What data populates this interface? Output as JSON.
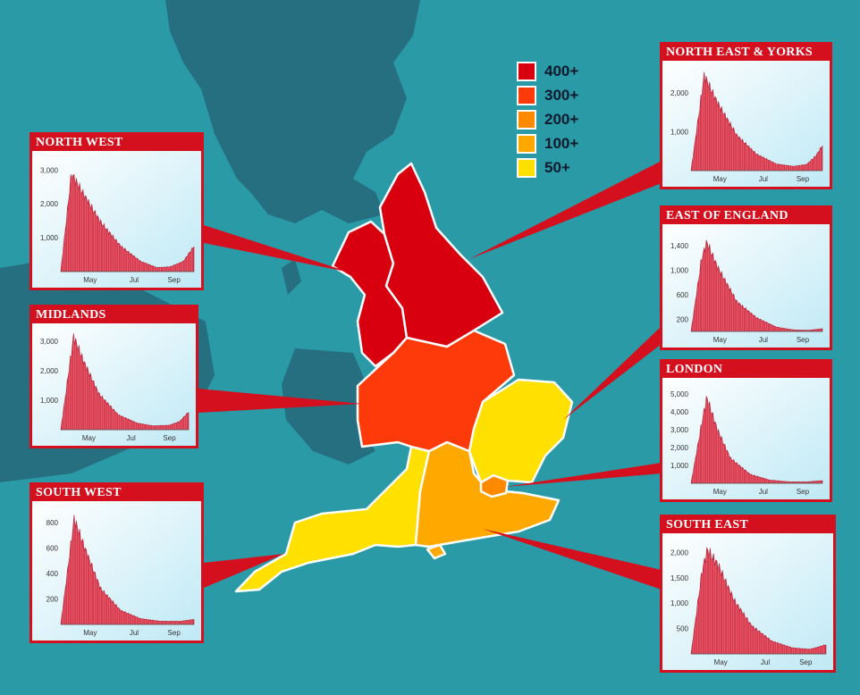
{
  "colors": {
    "sea": "#2a9aa6",
    "land_grey": "#256f80",
    "red_400": "#d8000f",
    "red_300": "#ff3a0a",
    "orange_200": "#ff8a00",
    "orange_100": "#ffa800",
    "yellow_50": "#ffe000",
    "panel_red": "#d4101e"
  },
  "legend": [
    {
      "label": "400+",
      "color": "#d8000f"
    },
    {
      "label": "300+",
      "color": "#ff3a0a"
    },
    {
      "label": "200+",
      "color": "#ff8a00"
    },
    {
      "label": "100+",
      "color": "#ffa800"
    },
    {
      "label": "50+",
      "color": "#ffe000"
    }
  ],
  "regions": [
    {
      "name": "North West",
      "band": "400+"
    },
    {
      "name": "North East & Yorks",
      "band": "400+"
    },
    {
      "name": "Midlands",
      "band": "300+"
    },
    {
      "name": "East of England",
      "band": "50+"
    },
    {
      "name": "London",
      "band": "200+"
    },
    {
      "name": "South East",
      "band": "100+"
    },
    {
      "name": "South West",
      "band": "50+"
    }
  ],
  "chart_data": [
    {
      "type": "area",
      "title": "NORTH WEST",
      "x": [
        "May",
        "Jul",
        "Sep"
      ],
      "yticks": [
        "1,000",
        "2,000",
        "3,000"
      ],
      "ylim": [
        0,
        3300
      ],
      "profile": [
        [
          0,
          0
        ],
        [
          0.08,
          2900
        ],
        [
          0.16,
          2350
        ],
        [
          0.3,
          1450
        ],
        [
          0.45,
          750
        ],
        [
          0.6,
          300
        ],
        [
          0.72,
          120
        ],
        [
          0.82,
          140
        ],
        [
          0.92,
          300
        ],
        [
          1,
          750
        ]
      ]
    },
    {
      "type": "area",
      "title": "MIDLANDS",
      "x": [
        "May",
        "Jul",
        "Sep"
      ],
      "yticks": [
        "1,000",
        "2,000",
        "3,000"
      ],
      "ylim": [
        0,
        3300
      ],
      "profile": [
        [
          0,
          0
        ],
        [
          0.1,
          3150
        ],
        [
          0.18,
          2300
        ],
        [
          0.3,
          1200
        ],
        [
          0.45,
          500
        ],
        [
          0.6,
          220
        ],
        [
          0.72,
          130
        ],
        [
          0.85,
          150
        ],
        [
          0.93,
          280
        ],
        [
          1,
          600
        ]
      ]
    },
    {
      "type": "area",
      "title": "SOUTH WEST",
      "x": [
        "May",
        "Jul",
        "Sep"
      ],
      "yticks": [
        "200",
        "400",
        "600",
        "800"
      ],
      "ylim": [
        0,
        900
      ],
      "profile": [
        [
          0,
          0
        ],
        [
          0.1,
          830
        ],
        [
          0.18,
          600
        ],
        [
          0.3,
          280
        ],
        [
          0.45,
          110
        ],
        [
          0.6,
          45
        ],
        [
          0.75,
          25
        ],
        [
          0.9,
          25
        ],
        [
          1,
          40
        ]
      ]
    },
    {
      "type": "area",
      "title": "NORTH EAST & YORKS",
      "x": [
        "May",
        "Jul",
        "Sep"
      ],
      "yticks": [
        "1,000",
        "2,000"
      ],
      "ylim": [
        0,
        2600
      ],
      "profile": [
        [
          0,
          0
        ],
        [
          0.1,
          2450
        ],
        [
          0.2,
          1750
        ],
        [
          0.35,
          900
        ],
        [
          0.5,
          420
        ],
        [
          0.65,
          170
        ],
        [
          0.78,
          110
        ],
        [
          0.88,
          160
        ],
        [
          0.95,
          380
        ],
        [
          1,
          650
        ]
      ]
    },
    {
      "type": "area",
      "title": "EAST OF ENGLAND",
      "x": [
        "May",
        "Jul",
        "Sep"
      ],
      "yticks": [
        "200",
        "600",
        "1,000",
        "1,400"
      ],
      "ylim": [
        0,
        1600
      ],
      "profile": [
        [
          0,
          0
        ],
        [
          0.08,
          1180
        ],
        [
          0.12,
          1450
        ],
        [
          0.2,
          1050
        ],
        [
          0.35,
          480
        ],
        [
          0.5,
          220
        ],
        [
          0.65,
          70
        ],
        [
          0.78,
          25
        ],
        [
          0.9,
          20
        ],
        [
          1,
          45
        ]
      ]
    },
    {
      "type": "area",
      "title": "LONDON",
      "x": [
        "May",
        "Jul",
        "Sep"
      ],
      "yticks": [
        "1,000",
        "2,000",
        "3,000",
        "4,000",
        "5,000"
      ],
      "ylim": [
        0,
        5400
      ],
      "profile": [
        [
          0,
          0
        ],
        [
          0.08,
          3300
        ],
        [
          0.12,
          4800
        ],
        [
          0.2,
          3000
        ],
        [
          0.3,
          1400
        ],
        [
          0.45,
          500
        ],
        [
          0.6,
          180
        ],
        [
          0.75,
          80
        ],
        [
          0.88,
          80
        ],
        [
          1,
          150
        ]
      ]
    },
    {
      "type": "area",
      "title": "SOUTH EAST",
      "x": [
        "May",
        "Jul",
        "Sep"
      ],
      "yticks": [
        "500",
        "1,000",
        "1,500",
        "2,000"
      ],
      "ylim": [
        0,
        2200
      ],
      "profile": [
        [
          0,
          0
        ],
        [
          0.08,
          1600
        ],
        [
          0.12,
          2050
        ],
        [
          0.2,
          1750
        ],
        [
          0.32,
          1050
        ],
        [
          0.45,
          550
        ],
        [
          0.6,
          250
        ],
        [
          0.75,
          120
        ],
        [
          0.88,
          90
        ],
        [
          1,
          180
        ]
      ]
    }
  ]
}
